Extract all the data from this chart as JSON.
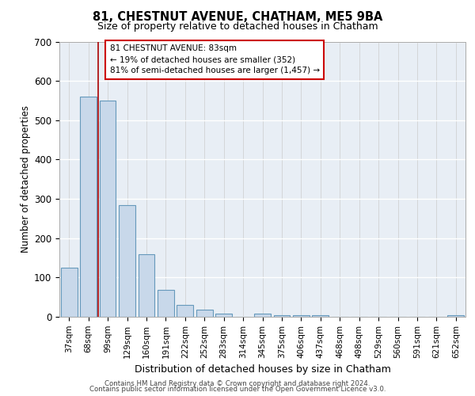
{
  "title1": "81, CHESTNUT AVENUE, CHATHAM, ME5 9BA",
  "title2": "Size of property relative to detached houses in Chatham",
  "xlabel": "Distribution of detached houses by size in Chatham",
  "ylabel": "Number of detached properties",
  "categories": [
    "37sqm",
    "68sqm",
    "99sqm",
    "129sqm",
    "160sqm",
    "191sqm",
    "222sqm",
    "252sqm",
    "283sqm",
    "314sqm",
    "345sqm",
    "375sqm",
    "406sqm",
    "437sqm",
    "468sqm",
    "498sqm",
    "529sqm",
    "560sqm",
    "591sqm",
    "621sqm",
    "652sqm"
  ],
  "values": [
    125,
    560,
    550,
    285,
    160,
    68,
    30,
    18,
    8,
    0,
    8,
    5,
    4,
    5,
    0,
    0,
    0,
    0,
    0,
    0,
    5
  ],
  "bar_color": "#c8d8ea",
  "bar_edge_color": "#6699bb",
  "red_line_x": 1.5,
  "annotation_text": "81 CHESTNUT AVENUE: 83sqm\n← 19% of detached houses are smaller (352)\n81% of semi-detached houses are larger (1,457) →",
  "annotation_box_color": "#ffffff",
  "annotation_box_edge": "#cc0000",
  "ylim": [
    0,
    700
  ],
  "yticks": [
    0,
    100,
    200,
    300,
    400,
    500,
    600,
    700
  ],
  "bg_color": "#e8eef5",
  "footer1": "Contains HM Land Registry data © Crown copyright and database right 2024.",
  "footer2": "Contains public sector information licensed under the Open Government Licence v3.0."
}
